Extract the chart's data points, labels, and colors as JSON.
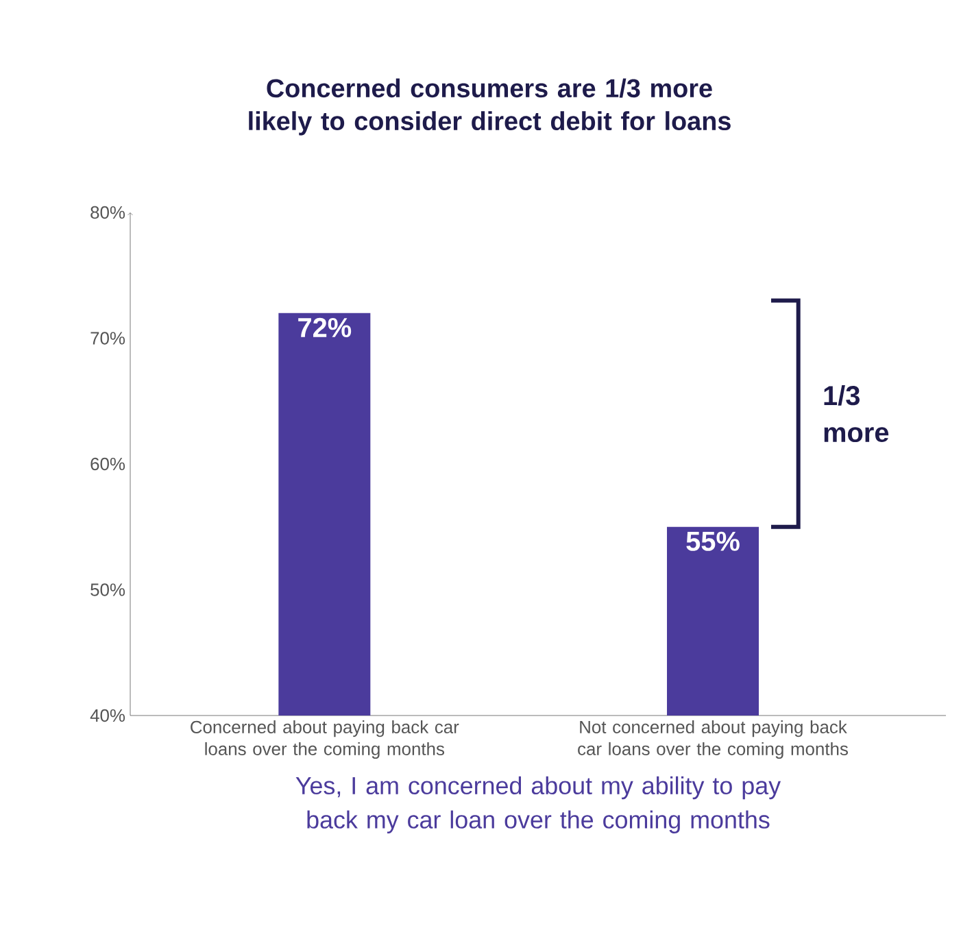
{
  "chart_data": {
    "type": "bar",
    "title": "Concerned consumers are 1/3 more likely to consider direct debit for loans",
    "categories": [
      "Concerned about paying back car loans over the coming months",
      "Not concerned about paying back car loans over the coming months"
    ],
    "values": [
      72,
      55
    ],
    "color": "#4b3b9c",
    "value_labels": [
      "72%",
      "55%"
    ],
    "xlabel": "Yes, I am concerned about my ability to pay back my car loan over the coming months",
    "annotations": [
      "1/3 more"
    ],
    "ylim": [
      40,
      80
    ],
    "yticks": [
      {
        "value": 40,
        "label": "40%"
      },
      {
        "value": 50,
        "label": "50%"
      },
      {
        "value": 60,
        "label": "60%"
      },
      {
        "value": 70,
        "label": "70%"
      },
      {
        "value": 80,
        "label": "80%"
      }
    ]
  }
}
